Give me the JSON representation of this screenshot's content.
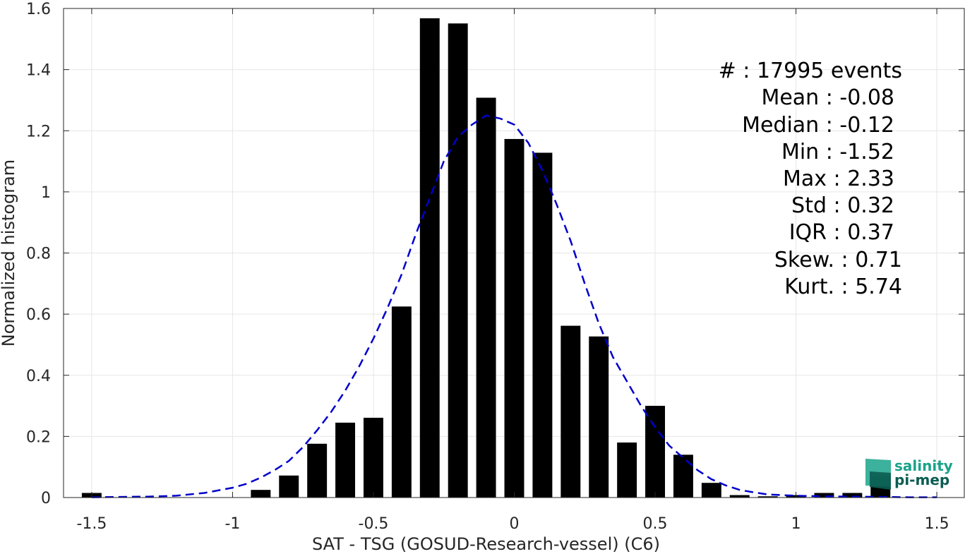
{
  "chart_data": {
    "type": "bar",
    "xlabel": "SAT - TSG (GOSUD-Research-vessel) (C6)",
    "ylabel": "Normalized histogram",
    "xlim": [
      -1.6,
      1.6
    ],
    "ylim": [
      0,
      1.6
    ],
    "x_ticks": [
      -1.5,
      -1,
      -0.5,
      0,
      0.5,
      1,
      1.5
    ],
    "x_tick_labels": [
      "-1.5",
      "-1",
      "-0.5",
      "0",
      "0.5",
      "1",
      "1.5"
    ],
    "y_ticks": [
      0,
      0.2,
      0.4,
      0.6,
      0.8,
      1.0,
      1.2,
      1.4,
      1.6
    ],
    "y_tick_labels": [
      "0",
      "0.2",
      "0.4",
      "0.6",
      "0.8",
      "1",
      "1.2",
      "1.4",
      "1.6"
    ],
    "grid": true,
    "bar_color": "#000000",
    "bar_width": 0.07,
    "bars": {
      "x": [
        -1.5,
        -1.4,
        -1.3,
        -1.2,
        -1.1,
        -1.0,
        -0.9,
        -0.8,
        -0.7,
        -0.6,
        -0.5,
        -0.4,
        -0.3,
        -0.2,
        -0.1,
        0.0,
        0.1,
        0.2,
        0.3,
        0.4,
        0.5,
        0.6,
        0.7,
        0.8,
        0.9,
        1.0,
        1.1,
        1.2,
        1.3
      ],
      "values": [
        0.015,
        0,
        0,
        0,
        0,
        0,
        0.025,
        0.072,
        0.176,
        0.245,
        0.261,
        0.625,
        1.568,
        1.551,
        1.308,
        1.173,
        1.128,
        0.562,
        0.527,
        0.18,
        0.3,
        0.14,
        0.048,
        0.008,
        0.004,
        0.008,
        0.015,
        0.015,
        0.069
      ]
    },
    "fit_curve": {
      "color": "#0000cc",
      "style": "dashed",
      "x": [
        -1.5,
        -1.4,
        -1.3,
        -1.2,
        -1.1,
        -1.0,
        -0.95,
        -0.9,
        -0.85,
        -0.8,
        -0.75,
        -0.7,
        -0.65,
        -0.6,
        -0.55,
        -0.5,
        -0.45,
        -0.4,
        -0.35,
        -0.3,
        -0.25,
        -0.2,
        -0.15,
        -0.1,
        -0.05,
        0.0,
        0.05,
        0.1,
        0.15,
        0.2,
        0.25,
        0.3,
        0.35,
        0.4,
        0.45,
        0.5,
        0.55,
        0.6,
        0.65,
        0.7,
        0.75,
        0.8,
        0.85,
        0.9,
        1.0,
        1.1,
        1.2,
        1.3,
        1.4,
        1.5
      ],
      "y": [
        0.001,
        0.002,
        0.003,
        0.006,
        0.015,
        0.032,
        0.045,
        0.065,
        0.09,
        0.12,
        0.165,
        0.22,
        0.28,
        0.35,
        0.43,
        0.52,
        0.62,
        0.73,
        0.86,
        0.98,
        1.1,
        1.18,
        1.22,
        1.25,
        1.24,
        1.22,
        1.16,
        1.07,
        0.96,
        0.84,
        0.7,
        0.57,
        0.46,
        0.38,
        0.3,
        0.23,
        0.17,
        0.13,
        0.09,
        0.06,
        0.04,
        0.025,
        0.017,
        0.01,
        0.006,
        0.004,
        0.003,
        0.002,
        0.001,
        0.001
      ]
    }
  },
  "stats": [
    {
      "text": "#  : 17995 events"
    },
    {
      "text": "Mean : -0.08"
    },
    {
      "text": "Median : -0.12"
    },
    {
      "text": "Min : -1.52"
    },
    {
      "text": "Max : 2.33"
    },
    {
      "text": "Std : 0.32"
    },
    {
      "text": "IQR : 0.37"
    },
    {
      "text": "Skew. : 0.71"
    },
    {
      "text": "Kurt. : 5.74"
    }
  ],
  "logo": {
    "line1": "salinity",
    "line2": "pi-mep",
    "color_top": "#1aa38a",
    "color_bottom": "#0b5d52"
  }
}
